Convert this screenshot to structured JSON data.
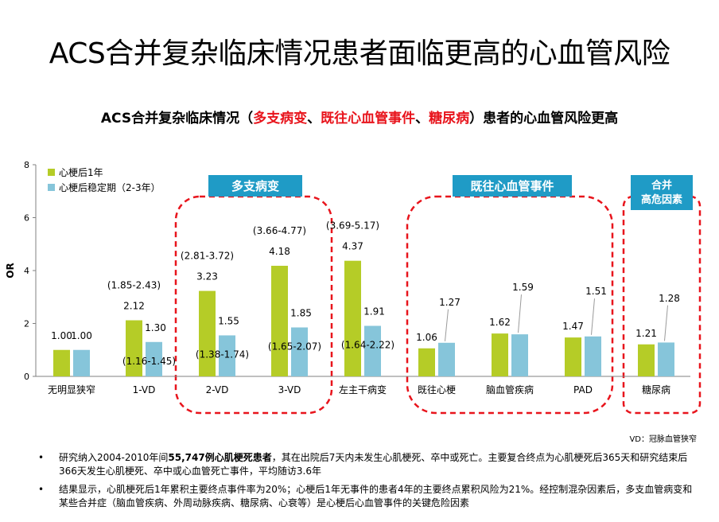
{
  "page": {
    "title": "ACS合并复杂临床情况患者面临更高的心血管风险",
    "subtitle_parts": {
      "p1": "ACS合并复杂临床情况（",
      "h1": "多支病变",
      "s1": "、",
      "h2": "既往心血管事件",
      "s2": "、",
      "h3": "糖尿病",
      "p2": "）患者的心血管风险更高"
    },
    "footnote": "VD：冠脉血管狭窄",
    "bullets": [
      {
        "marker": "•",
        "pre": "研究纳入2004-2010年间",
        "bold": "55,747例心肌梗死患者",
        "post": "，其在出院后7天内未发生心肌梗死、卒中或死亡。主要复合终点为心肌梗死后365天和研究结束后366天发生心肌梗死、卒中或心血管死亡事件，平均随访3.6年"
      },
      {
        "marker": "•",
        "pre": "结果显示，心肌梗死后1年累积主要终点事件率为20%；心梗后1年无事件的患者4年的主要终点累积风险为21%。经控制混杂因素后，多支血管病变和某些合并症（脑血管疾病、外周动脉疾病、糖尿病、心衰等）是心梗后心血管事件的关键危险因素",
        "bold": "",
        "post": ""
      }
    ]
  },
  "chart_data": {
    "type": "bar",
    "ylabel": "OR",
    "ylim": [
      0,
      8
    ],
    "yticks": [
      0,
      2,
      4,
      6,
      8
    ],
    "categories": [
      "无明显狭窄",
      "1-VD",
      "2-VD",
      "3-VD",
      "左主干病变",
      "既往心梗",
      "脑血管疾病",
      "PAD",
      "糖尿病"
    ],
    "series": [
      {
        "name": "心梗后1年",
        "color": "#b5cc27",
        "values": [
          1.0,
          2.12,
          3.23,
          4.18,
          4.37,
          1.06,
          1.62,
          1.47,
          1.21
        ],
        "labels": [
          "1.00",
          "2.12",
          "3.23",
          "4.18",
          "4.37",
          "1.06",
          "1.62",
          "1.47",
          "1.21"
        ],
        "ci": [
          "",
          "(1.85-2.43)",
          "(2.81-3.72)",
          "(3.66-4.77)",
          "(3.69-5.17)",
          "",
          "",
          "",
          ""
        ]
      },
      {
        "name": "心梗后稳定期（2-3年）",
        "color": "#86c5da",
        "values": [
          1.0,
          1.3,
          1.55,
          1.85,
          1.91,
          1.27,
          1.59,
          1.51,
          1.28
        ],
        "labels": [
          "1.00",
          "1.30",
          "1.55",
          "1.85",
          "1.91",
          "1.27",
          "1.59",
          "1.51",
          "1.28"
        ],
        "ci": [
          "",
          "(1.16-1.45)",
          "(1.38-1.74)",
          "(1.65-2.07)",
          "(1.64-2.22)",
          "",
          "",
          "",
          ""
        ]
      }
    ],
    "groups": [
      {
        "label": "多支病变",
        "from": 2,
        "to": 3
      },
      {
        "label": "既往心血管事件",
        "from": 5,
        "to": 7
      },
      {
        "label": "合并\n高危因素",
        "from": 8,
        "to": 8
      }
    ],
    "colors": {
      "group_label_bg": "#1f9bc6",
      "group_border": "#e8141c",
      "axis": "#808080"
    }
  }
}
